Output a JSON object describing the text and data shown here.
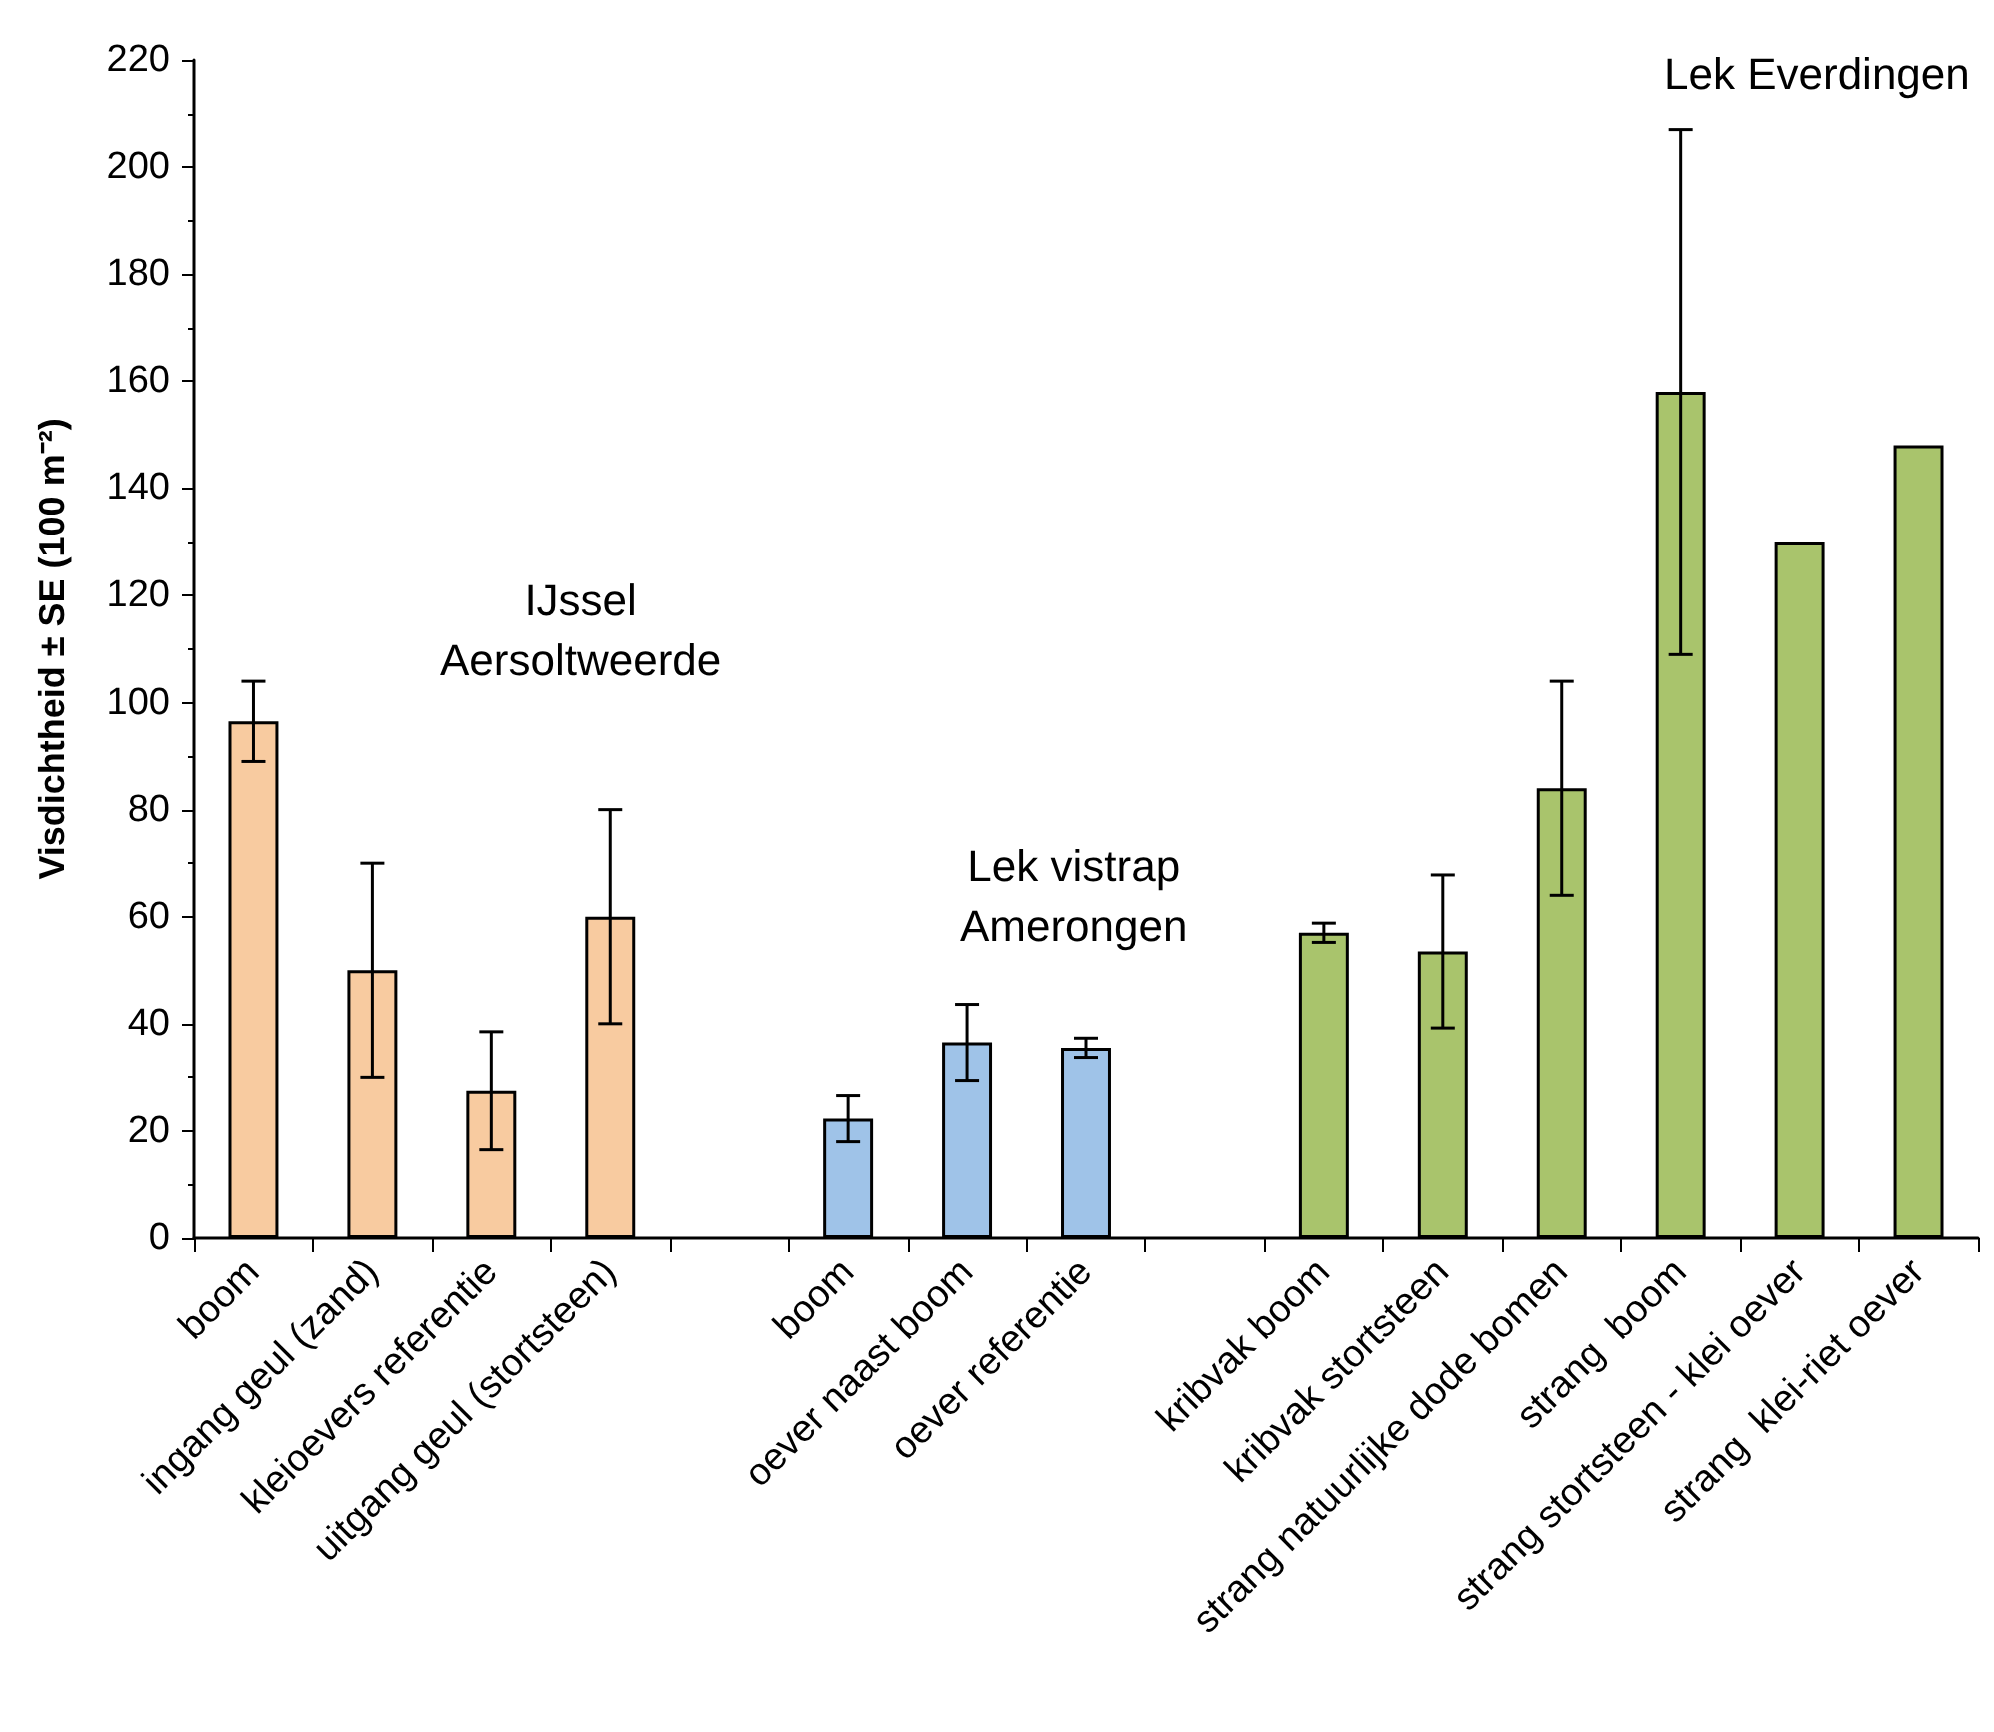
{
  "chart_data": {
    "type": "bar",
    "ylabel": "Visdichtheid ± SE (100 m⁻²)",
    "categories": [
      "boom",
      "ingang geul (zand)",
      "kleioevers referentie",
      "uitgang geul (stortsteen)",
      null,
      "boom",
      "oever naast boom",
      "oever referentie",
      null,
      "kribvak boom",
      "kribvak stortsteen",
      "strang natuurlijke dode bomen",
      "strang  boom",
      "strang stortsteen - klei oever",
      "strang  klei-riet oever"
    ],
    "values": [
      96.5,
      50,
      27.5,
      60,
      null,
      22.3,
      36.5,
      35.5,
      null,
      57,
      53.5,
      84,
      158,
      130,
      148
    ],
    "errors": [
      7.5,
      20,
      11,
      20,
      null,
      4.3,
      7.1,
      1.8,
      null,
      1.8,
      14.3,
      20,
      49,
      null,
      null
    ],
    "colors": [
      "#f8cba0",
      "#f8cba0",
      "#f8cba0",
      "#f8cba0",
      null,
      "#9fc3e8",
      "#9fc3e8",
      "#9fc3e8",
      null,
      "#a9c46c",
      "#a9c46c",
      "#a9c46c",
      "#a9c46c",
      "#a9c46c",
      "#a9c46c"
    ],
    "ylim": [
      0,
      220
    ],
    "yticks": [
      0,
      20,
      40,
      60,
      80,
      100,
      120,
      140,
      160,
      180,
      200,
      220
    ],
    "annotations": [
      "IJssel\nAersoltweerde",
      "Lek vistrap\nAmerongen",
      "Lek Everdingen"
    ]
  }
}
